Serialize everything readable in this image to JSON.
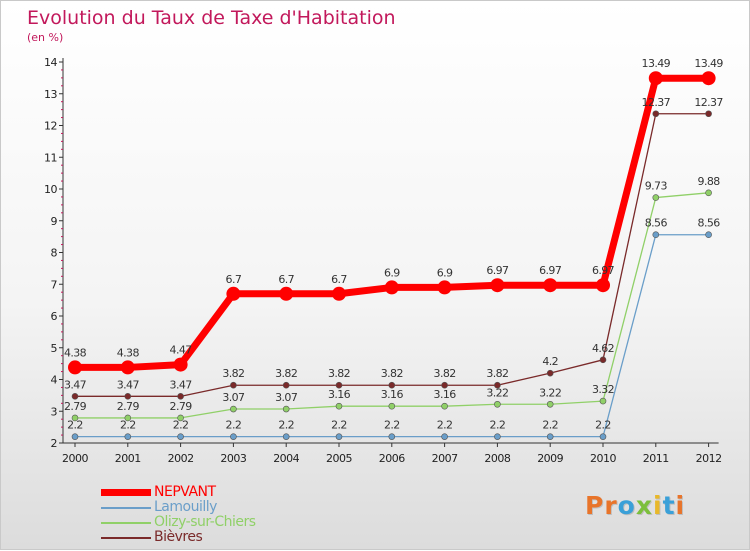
{
  "header": {
    "title": "Evolution du Taux de Taxe d'Habitation",
    "subtitle": "(en %)"
  },
  "logo": {
    "text": "Proxiti",
    "letters": [
      {
        "ch": "P",
        "color": "#e8742a"
      },
      {
        "ch": "r",
        "color": "#e8742a"
      },
      {
        "ch": "o",
        "color": "#3aa0d8"
      },
      {
        "ch": "x",
        "color": "#7cbf3c"
      },
      {
        "ch": "i",
        "color": "#e8b82a"
      },
      {
        "ch": "t",
        "color": "#3aa0d8"
      },
      {
        "ch": "i",
        "color": "#e8742a"
      }
    ]
  },
  "chart_data": {
    "type": "line",
    "title": "Evolution du Taux de Taxe d'Habitation",
    "subtitle": "(en %)",
    "x": [
      "2000",
      "2001",
      "2002",
      "2003",
      "2004",
      "2005",
      "2006",
      "2007",
      "2008",
      "2009",
      "2010",
      "2011",
      "2012"
    ],
    "ylim": [
      2,
      14
    ],
    "yticks": [
      2,
      3,
      4,
      5,
      6,
      7,
      8,
      9,
      10,
      11,
      12,
      13,
      14
    ],
    "grid": false,
    "legend_position": "bottom-left",
    "series": [
      {
        "name": "NEPVANT",
        "color": "#ff0000",
        "values": [
          4.38,
          4.38,
          4.47,
          6.7,
          6.7,
          6.7,
          6.9,
          6.9,
          6.97,
          6.97,
          6.97,
          13.49,
          13.49
        ],
        "labels": [
          "4.38",
          "4.38",
          "4.47",
          "6.7",
          "6.7",
          "6.7",
          "6.9",
          "6.9",
          "6.97",
          "6.97",
          "6.97",
          "13.49",
          "13.49"
        ]
      },
      {
        "name": "Lamouilly",
        "color": "#6a9ec9",
        "values": [
          2.2,
          2.2,
          2.2,
          2.2,
          2.2,
          2.2,
          2.2,
          2.2,
          2.2,
          2.2,
          2.2,
          8.56,
          8.56
        ],
        "labels": [
          "2.2",
          "2.2",
          "2.2",
          "2.2",
          "2.2",
          "2.2",
          "2.2",
          "2.2",
          "2.2",
          "2.2",
          "2.2",
          "8.56",
          "8.56"
        ]
      },
      {
        "name": "Olizy-sur-Chiers",
        "color": "#90d068",
        "values": [
          2.79,
          2.79,
          2.79,
          3.07,
          3.07,
          3.16,
          3.16,
          3.16,
          3.22,
          3.22,
          3.32,
          9.73,
          9.88
        ],
        "labels": [
          "2.79",
          "2.79",
          "2.79",
          "3.07",
          "3.07",
          "3.16",
          "3.16",
          "3.16",
          "3.22",
          "3.22",
          "3.32",
          "9.73",
          "9.88"
        ]
      },
      {
        "name": "Bièvres",
        "color": "#7a2a2a",
        "values": [
          3.47,
          3.47,
          3.47,
          3.82,
          3.82,
          3.82,
          3.82,
          3.82,
          3.82,
          4.2,
          4.62,
          12.37,
          12.37
        ],
        "labels": [
          "3.47",
          "3.47",
          "3.47",
          "3.82",
          "3.82",
          "3.82",
          "3.82",
          "3.82",
          "3.82",
          "4.2",
          "4.62",
          "12.37",
          "12.37"
        ]
      }
    ]
  }
}
